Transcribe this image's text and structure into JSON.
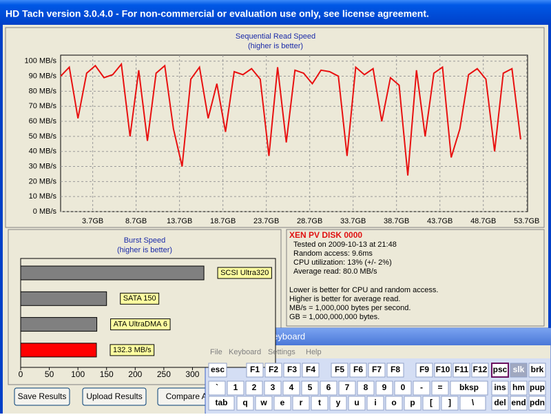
{
  "window_title": "HD Tach version 3.0.4.0  - For non-commercial or evaluation use only, see license agreement.",
  "chart_data": [
    {
      "type": "line",
      "title": "Sequential Read Speed",
      "subtitle": "(higher is better)",
      "x": [
        0,
        1,
        2,
        3,
        4,
        5,
        6,
        7,
        8,
        9,
        10,
        11,
        12,
        13,
        14,
        15,
        16,
        17,
        18,
        19,
        20,
        21,
        22,
        23,
        24,
        25,
        26,
        27,
        28,
        29,
        30,
        31,
        32,
        33,
        34,
        35,
        36,
        37,
        38,
        39,
        40,
        41,
        42,
        43,
        44,
        45,
        46,
        47,
        48,
        49,
        50,
        51,
        52,
        53
      ],
      "series": [
        {
          "color": "#e81010",
          "values": [
            90,
            96,
            62,
            92,
            97,
            89,
            91,
            98,
            50,
            94,
            47,
            92,
            97,
            55,
            30,
            88,
            96,
            62,
            85,
            53,
            93,
            91,
            95,
            88,
            37,
            96,
            46,
            94,
            92,
            85,
            94,
            93,
            90,
            37,
            96,
            91,
            95,
            60,
            89,
            84,
            24,
            94,
            50,
            92,
            96,
            36,
            55,
            91,
            95,
            88,
            40,
            92,
            95,
            48
          ]
        }
      ],
      "xlim": [
        0,
        53.8
      ],
      "xticks": [
        {
          "value": 3.7,
          "label": "3.7GB"
        },
        {
          "value": 8.7,
          "label": "8.7GB"
        },
        {
          "value": 13.7,
          "label": "13.7GB"
        },
        {
          "value": 18.7,
          "label": "18.7GB"
        },
        {
          "value": 23.7,
          "label": "23.7GB"
        },
        {
          "value": 28.7,
          "label": "28.7GB"
        },
        {
          "value": 33.7,
          "label": "33.7GB"
        },
        {
          "value": 38.7,
          "label": "38.7GB"
        },
        {
          "value": 43.7,
          "label": "43.7GB"
        },
        {
          "value": 48.7,
          "label": "48.7GB"
        },
        {
          "value": 53.7,
          "label": "53.7GB"
        }
      ],
      "ylim": [
        0,
        104
      ],
      "yticks": [
        {
          "value": 0,
          "label": "0 MB/s"
        },
        {
          "value": 10,
          "label": "10 MB/s"
        },
        {
          "value": 20,
          "label": "20 MB/s"
        },
        {
          "value": 30,
          "label": "30 MB/s"
        },
        {
          "value": 40,
          "label": "40 MB/s"
        },
        {
          "value": 50,
          "label": "50 MB/s"
        },
        {
          "value": 60,
          "label": "60 MB/s"
        },
        {
          "value": 70,
          "label": "70 MB/s"
        },
        {
          "value": 80,
          "label": "80 MB/s"
        },
        {
          "value": 90,
          "label": "90 MB/s"
        },
        {
          "value": 100,
          "label": "100 MB/s"
        }
      ],
      "grid": true
    },
    {
      "type": "bar",
      "orientation": "horizontal",
      "title": "Burst Speed",
      "subtitle": "(higher is better)",
      "categories": [
        "SCSI Ultra320",
        "SATA 150",
        "ATA UltraDMA 6",
        null
      ],
      "values": [
        320,
        150,
        133,
        132.3
      ],
      "value_labels": [
        null,
        null,
        null,
        "132.3 MB/s"
      ],
      "colors": [
        "#808080",
        "#808080",
        "#808080",
        "#ff0000"
      ],
      "xlim": [
        0,
        445
      ],
      "xticks": [
        0,
        50,
        100,
        150,
        200,
        250,
        300
      ],
      "grid": false
    }
  ],
  "info": {
    "drive": "XEN PV DISK 0000",
    "details": [
      "Tested on 2009-10-13 at 21:48",
      "Random access: 9.6ms",
      "CPU utilization: 13% (+/- 2%)",
      "Average read: 80.0 MB/s"
    ],
    "notes": [
      "Lower is better for CPU and random access.",
      "Higher is better for average read.",
      "MB/s = 1,000,000 bytes per second.",
      "GB = 1,000,000,000 bytes."
    ]
  },
  "buttons": [
    "Save Results",
    "Upload Results",
    "Compare An"
  ],
  "keyboard": {
    "title": "On-Screen Keyboard",
    "menu": [
      "File",
      "Keyboard",
      "Settings",
      "Help"
    ],
    "rows": [
      [
        "esc",
        "F1",
        "F2",
        "F3",
        "F4",
        "F5",
        "F6",
        "F7",
        "F8",
        "F9",
        "F10",
        "F11",
        "F12",
        "psc",
        "slk",
        "brk"
      ],
      [
        "`",
        "1",
        "2",
        "3",
        "4",
        "5",
        "6",
        "7",
        "8",
        "9",
        "0",
        "-",
        "=",
        "bksp",
        "ins",
        "hm",
        "pup"
      ],
      [
        "tab",
        "q",
        "w",
        "e",
        "r",
        "t",
        "y",
        "u",
        "i",
        "o",
        "p",
        "[",
        "]",
        "\\",
        "del",
        "end",
        "pdn"
      ]
    ]
  }
}
